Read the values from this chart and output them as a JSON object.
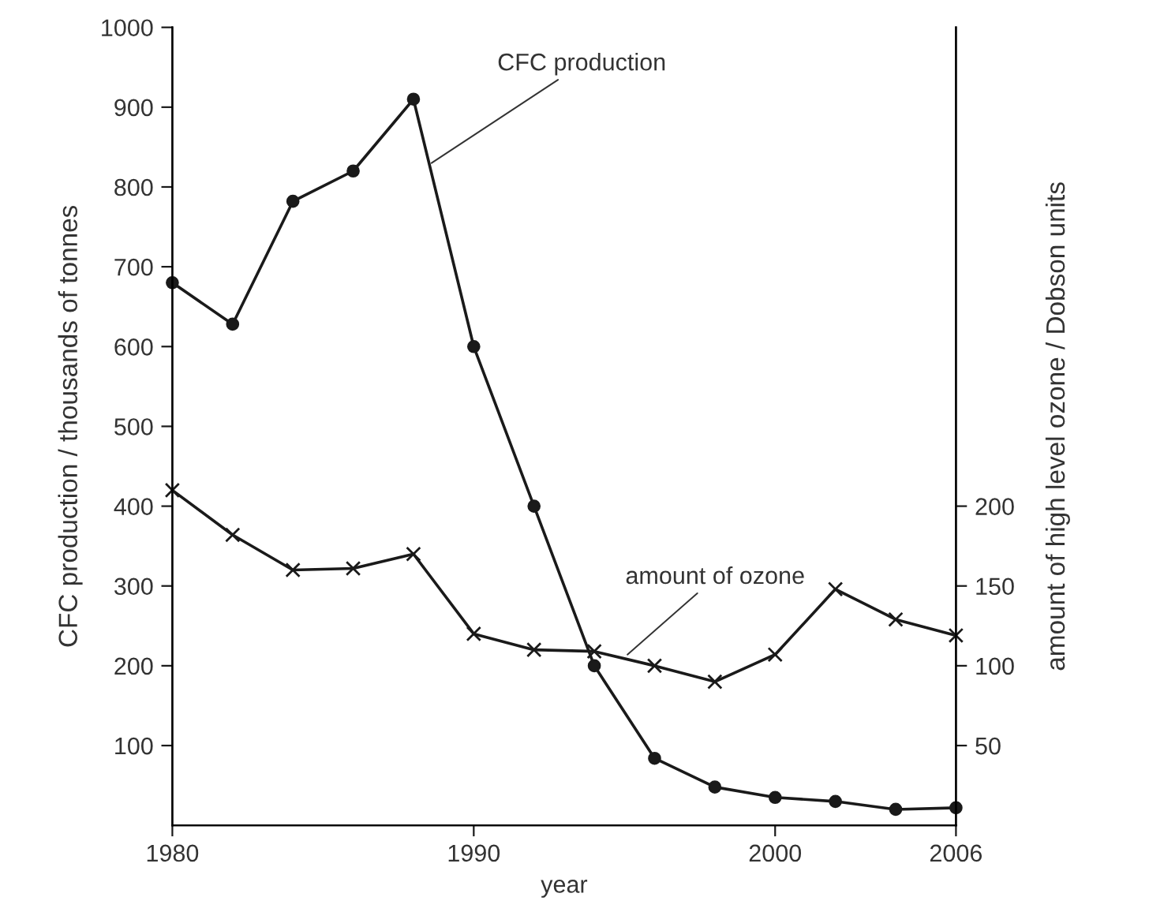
{
  "chart_data": {
    "type": "line",
    "xlabel": "year",
    "ylabel": "CFC production / thousands of tonnes",
    "y2label": "amount of high level ozone / Dobson units",
    "x": [
      1980,
      1982,
      1984,
      1986,
      1988,
      1990,
      1992,
      1994,
      1996,
      1998,
      2000,
      2002,
      2004,
      2006
    ],
    "series": [
      {
        "color": "#1a1a1a",
        "marker": "circle",
        "values": [
          680,
          628,
          782,
          820,
          910,
          600,
          400,
          200,
          84,
          48,
          35,
          30,
          20,
          22
        ]
      },
      {
        "color": "#1a1a1a",
        "marker": "cross",
        "axis": "y2",
        "values": [
          210,
          182,
          160,
          161,
          170,
          120,
          110,
          109,
          100,
          90,
          107,
          148,
          129,
          119
        ]
      }
    ],
    "xlim": [
      1980,
      2006
    ],
    "xticks": [
      1980,
      1990,
      2000,
      2006
    ],
    "ylim": [
      0,
      1000
    ],
    "yticks": [
      100,
      200,
      300,
      400,
      500,
      600,
      700,
      800,
      900,
      1000
    ],
    "y2lim": [
      0,
      500
    ],
    "y2ticks": [
      50,
      100,
      150,
      200
    ],
    "annotations": [
      {
        "text": "CFC production",
        "x": 1988.6,
        "y": 830
      },
      {
        "text": "amount of ozone",
        "x": 1995.1,
        "y": 214
      }
    ],
    "grid": false,
    "line_style": "solid"
  }
}
